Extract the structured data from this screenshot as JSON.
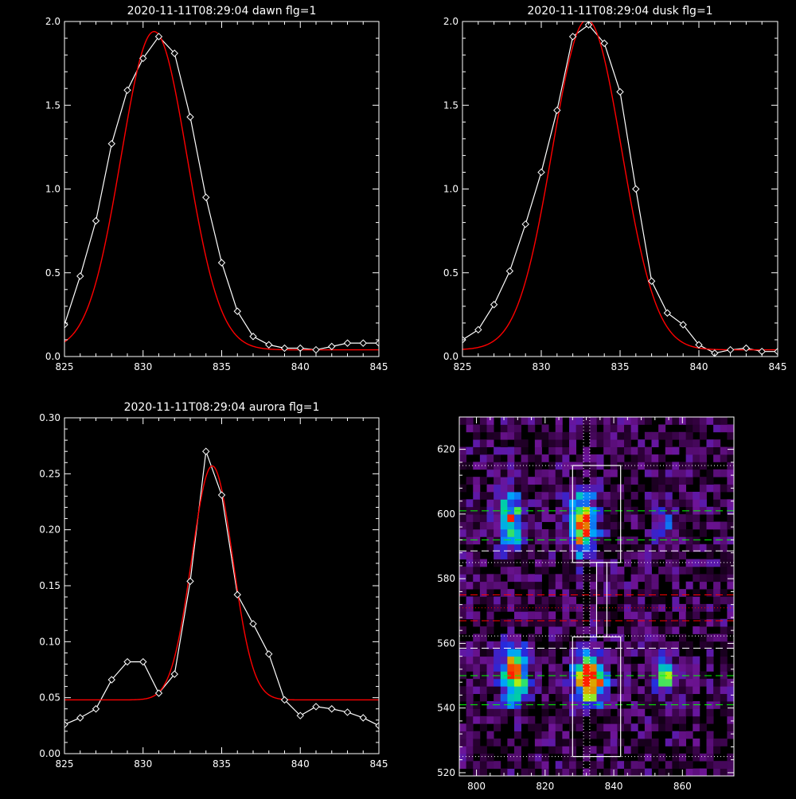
{
  "colors": {
    "background": "#000000",
    "axis": "#ffffff",
    "observed": "#ffffff",
    "fit": "#ff0000",
    "guide_white": "#ffffff",
    "guide_green": "#00ff00",
    "guide_red": "#ff0000"
  },
  "chart_data": [
    {
      "id": "dawn",
      "type": "line",
      "title": "2020-11-11T08:29:04 dawn flg=1",
      "xlabel": "",
      "ylabel": "",
      "xlim": [
        825,
        845
      ],
      "ylim": [
        0.0,
        2.0
      ],
      "xticks": [
        825,
        830,
        835,
        840,
        845
      ],
      "xtick_labels": [
        "825",
        "830",
        "835",
        "840",
        "845"
      ],
      "yticks": [
        0.0,
        0.5,
        1.0,
        1.5,
        2.0
      ],
      "ytick_labels": [
        "0.0",
        "0.5",
        "1.0",
        "1.5",
        "2.0"
      ],
      "x": [
        825,
        826,
        827,
        828,
        829,
        830,
        831,
        832,
        833,
        834,
        835,
        836,
        837,
        838,
        839,
        840,
        841,
        842,
        843,
        844,
        845
      ],
      "series": [
        {
          "role": "observed",
          "marker": "diamond",
          "values": [
            0.19,
            0.48,
            0.81,
            1.27,
            1.59,
            1.78,
            1.91,
            1.81,
            1.43,
            0.95,
            0.56,
            0.27,
            0.12,
            0.07,
            0.05,
            0.05,
            0.04,
            0.06,
            0.08,
            0.08,
            0.08
          ]
        },
        {
          "role": "fit",
          "marker": "none",
          "model": "gaussian",
          "amplitude": 1.9,
          "center": 830.7,
          "sigma": 2.1,
          "offset": 0.04
        }
      ]
    },
    {
      "id": "dusk",
      "type": "line",
      "title": "2020-11-11T08:29:04 dusk flg=1",
      "xlabel": "",
      "ylabel": "",
      "xlim": [
        825,
        845
      ],
      "ylim": [
        0.0,
        2.0
      ],
      "xticks": [
        825,
        830,
        835,
        840,
        845
      ],
      "xtick_labels": [
        "825",
        "830",
        "835",
        "840",
        "845"
      ],
      "yticks": [
        0.0,
        0.5,
        1.0,
        1.5,
        2.0
      ],
      "ytick_labels": [
        "0.0",
        "0.5",
        "1.0",
        "1.5",
        "2.0"
      ],
      "x": [
        825,
        826,
        827,
        828,
        829,
        830,
        831,
        832,
        833,
        834,
        835,
        836,
        837,
        838,
        839,
        840,
        841,
        842,
        843,
        844,
        845
      ],
      "series": [
        {
          "role": "observed",
          "marker": "diamond",
          "values": [
            0.1,
            0.16,
            0.31,
            0.51,
            0.79,
            1.1,
            1.47,
            1.91,
            1.98,
            1.87,
            1.58,
            1.0,
            0.45,
            0.26,
            0.19,
            0.07,
            0.02,
            0.04,
            0.05,
            0.03,
            0.03
          ]
        },
        {
          "role": "fit",
          "marker": "none",
          "model": "gaussian",
          "amplitude": 1.97,
          "center": 832.9,
          "sigma": 2.2,
          "offset": 0.04
        }
      ]
    },
    {
      "id": "aurora",
      "type": "line",
      "title": "2020-11-11T08:29:04 aurora flg=1",
      "xlabel": "",
      "ylabel": "",
      "xlim": [
        825,
        845
      ],
      "ylim": [
        0.0,
        0.3
      ],
      "xticks": [
        825,
        830,
        835,
        840,
        845
      ],
      "xtick_labels": [
        "825",
        "830",
        "835",
        "840",
        "845"
      ],
      "yticks": [
        0.0,
        0.05,
        0.1,
        0.15,
        0.2,
        0.25,
        0.3
      ],
      "ytick_labels": [
        "0.00",
        "0.05",
        "0.10",
        "0.15",
        "0.20",
        "0.25",
        "0.30"
      ],
      "x": [
        825,
        826,
        827,
        828,
        829,
        830,
        831,
        832,
        833,
        834,
        835,
        836,
        837,
        838,
        839,
        840,
        841,
        842,
        843,
        844,
        845
      ],
      "series": [
        {
          "role": "observed",
          "marker": "diamond",
          "values": [
            0.026,
            0.032,
            0.04,
            0.066,
            0.082,
            0.082,
            0.054,
            0.071,
            0.154,
            0.27,
            0.231,
            0.142,
            0.116,
            0.089,
            0.048,
            0.034,
            0.042,
            0.04,
            0.037,
            0.032,
            0.025
          ]
        },
        {
          "role": "fit",
          "marker": "none",
          "model": "gaussian",
          "amplitude": 0.209,
          "center": 834.4,
          "sigma": 1.3,
          "offset": 0.048
        }
      ]
    },
    {
      "id": "image",
      "type": "heatmap",
      "title": "",
      "xlabel": "",
      "ylabel": "",
      "xlim": [
        795,
        875
      ],
      "ylim": [
        519,
        630
      ],
      "xticks": [
        800,
        820,
        840,
        860
      ],
      "xtick_labels": [
        "800",
        "820",
        "840",
        "860"
      ],
      "yticks": [
        520,
        540,
        560,
        580,
        600,
        620
      ],
      "ytick_labels": [
        "520",
        "540",
        "560",
        "580",
        "600",
        "620"
      ],
      "grid": {
        "nx": 40,
        "ny": 48,
        "background": 0.14,
        "noise": 0.18,
        "seed": 7
      },
      "blobs": [
        {
          "x": 810,
          "y": 598,
          "sx": 2.5,
          "sy": 5.5,
          "amp": 0.7
        },
        {
          "x": 831,
          "y": 597,
          "sx": 2.8,
          "sy": 6.0,
          "amp": 0.95
        },
        {
          "x": 855,
          "y": 598,
          "sx": 2.5,
          "sy": 5.0,
          "amp": 0.25
        },
        {
          "x": 811,
          "y": 550,
          "sx": 2.7,
          "sy": 6.0,
          "amp": 0.8
        },
        {
          "x": 833,
          "y": 549,
          "sx": 3.0,
          "sy": 5.0,
          "amp": 1.0
        },
        {
          "x": 855,
          "y": 550,
          "sx": 2.5,
          "sy": 4.5,
          "amp": 0.55
        }
      ],
      "boxes": [
        {
          "x0": 828,
          "x1": 842,
          "y0": 585,
          "y1": 615
        },
        {
          "x0": 835,
          "x1": 838,
          "y0": 562,
          "y1": 585
        },
        {
          "x0": 828,
          "x1": 842,
          "y0": 525,
          "y1": 562
        }
      ],
      "hlines": [
        {
          "y": 615,
          "style": "dotted",
          "color": "#ffffff"
        },
        {
          "y": 601,
          "style": "dashed",
          "color": "#00ff00"
        },
        {
          "y": 592,
          "style": "dashed",
          "color": "#00ff00"
        },
        {
          "y": 588.6,
          "style": "dashed",
          "color": "#ffffff"
        },
        {
          "y": 585,
          "style": "dotted",
          "color": "#ffffff"
        },
        {
          "y": 575,
          "style": "dashed",
          "color": "#ff0000"
        },
        {
          "y": 571,
          "style": "dotted",
          "color": "#ff0000"
        },
        {
          "y": 567,
          "style": "dashed",
          "color": "#ff0000"
        },
        {
          "y": 562.3,
          "style": "dotted",
          "color": "#ffffff"
        },
        {
          "y": 558.5,
          "style": "dashed",
          "color": "#ffffff"
        },
        {
          "y": 550,
          "style": "dashed",
          "color": "#00ff00"
        },
        {
          "y": 541,
          "style": "dashed",
          "color": "#00ff00"
        },
        {
          "y": 525,
          "style": "dotted",
          "color": "#ffffff"
        }
      ],
      "vlines": [
        {
          "x": 831.2,
          "style": "dotted",
          "color": "#ffffff"
        },
        {
          "x": 833.0,
          "style": "dotted",
          "color": "#ffffff"
        }
      ]
    }
  ]
}
